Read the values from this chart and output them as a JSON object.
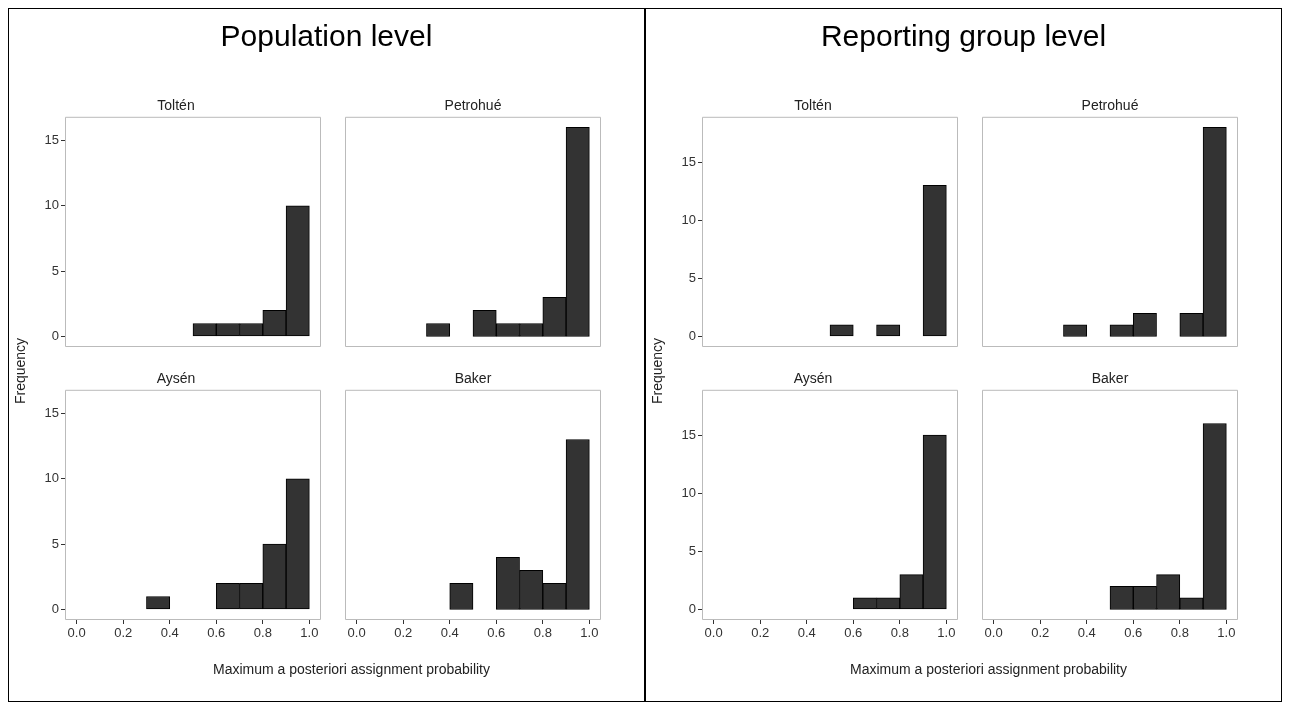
{
  "chart_data": [
    {
      "type": "other",
      "title": "Population level"
    },
    {
      "type": "histogram",
      "title": "Toltén",
      "ylabel": "Frequency",
      "bins": [
        0,
        0.1,
        0.2,
        0.3,
        0.4,
        0.5,
        0.6,
        0.7,
        0.8,
        0.9,
        1.0
      ],
      "values": [
        0,
        0,
        0,
        0,
        0,
        1,
        1,
        1,
        2,
        10
      ],
      "color": "#333333",
      "xlim": [
        -0.05,
        1.05
      ],
      "ylim": [
        -0.8,
        16.8
      ],
      "xticks": [
        0,
        0.2,
        0.4,
        0.6,
        0.8,
        1
      ],
      "yticks": [
        0,
        5,
        10,
        15
      ],
      "grid": false,
      "tick_labels": "y"
    },
    {
      "type": "histogram",
      "title": "Petrohué",
      "bins": [
        0,
        0.1,
        0.2,
        0.3,
        0.4,
        0.5,
        0.6,
        0.7,
        0.8,
        0.9,
        1.0
      ],
      "values": [
        0,
        0,
        0,
        1,
        0,
        2,
        1,
        1,
        3,
        16
      ],
      "color": "#333333",
      "xlim": [
        -0.05,
        1.05
      ],
      "ylim": [
        -0.8,
        16.8
      ],
      "xticks": [
        0,
        0.2,
        0.4,
        0.6,
        0.8,
        1
      ],
      "yticks": [
        0,
        5,
        10,
        15
      ],
      "grid": false,
      "tick_labels": false
    },
    {
      "type": "histogram",
      "title": "Aysén",
      "xlabel": "Maximum a posteriori assignment probability",
      "bins": [
        0,
        0.1,
        0.2,
        0.3,
        0.4,
        0.5,
        0.6,
        0.7,
        0.8,
        0.9,
        1.0
      ],
      "values": [
        0,
        0,
        0,
        1,
        0,
        0,
        2,
        2,
        5,
        10
      ],
      "color": "#333333",
      "xlim": [
        -0.05,
        1.05
      ],
      "ylim": [
        -0.8,
        16.8
      ],
      "xticks": [
        {
          "value": 0,
          "label": "0.0"
        },
        {
          "value": 0.2,
          "label": "0.2"
        },
        {
          "value": 0.4,
          "label": "0.4"
        },
        {
          "value": 0.6,
          "label": "0.6"
        },
        {
          "value": 0.8,
          "label": "0.8"
        },
        {
          "value": 1,
          "label": "1.0"
        }
      ],
      "yticks": [
        0,
        5,
        10,
        15
      ],
      "grid": false
    },
    {
      "type": "histogram",
      "title": "Baker",
      "bins": [
        0,
        0.1,
        0.2,
        0.3,
        0.4,
        0.5,
        0.6,
        0.7,
        0.8,
        0.9,
        1.0
      ],
      "values": [
        0,
        0,
        0,
        0,
        2,
        0,
        4,
        3,
        2,
        13
      ],
      "color": "#333333",
      "xlim": [
        -0.05,
        1.05
      ],
      "ylim": [
        -0.8,
        16.8
      ],
      "xticks": [
        {
          "value": 0,
          "label": "0.0"
        },
        {
          "value": 0.2,
          "label": "0.2"
        },
        {
          "value": 0.4,
          "label": "0.4"
        },
        {
          "value": 0.6,
          "label": "0.6"
        },
        {
          "value": 0.8,
          "label": "0.8"
        },
        {
          "value": 1,
          "label": "1.0"
        }
      ],
      "yticks": [
        0,
        5,
        10,
        15
      ],
      "grid": false,
      "tick_labels": "x"
    },
    {
      "type": "other",
      "title": "Reporting group level"
    },
    {
      "type": "histogram",
      "title": "Toltén",
      "ylabel": "Frequency",
      "bins": [
        0,
        0.1,
        0.2,
        0.3,
        0.4,
        0.5,
        0.6,
        0.7,
        0.8,
        0.9,
        1.0
      ],
      "values": [
        0,
        0,
        0,
        0,
        0,
        1,
        0,
        1,
        0,
        13
      ],
      "color": "#333333",
      "xlim": [
        -0.05,
        1.05
      ],
      "ylim": [
        -0.9,
        18.9
      ],
      "xticks": [
        0,
        0.2,
        0.4,
        0.6,
        0.8,
        1
      ],
      "yticks": [
        0,
        5,
        10,
        15
      ],
      "grid": false,
      "tick_labels": "y"
    },
    {
      "type": "histogram",
      "title": "Petrohué",
      "bins": [
        0,
        0.1,
        0.2,
        0.3,
        0.4,
        0.5,
        0.6,
        0.7,
        0.8,
        0.9,
        1.0
      ],
      "values": [
        0,
        0,
        0,
        1,
        0,
        1,
        2,
        0,
        2,
        18
      ],
      "color": "#333333",
      "xlim": [
        -0.05,
        1.05
      ],
      "ylim": [
        -0.9,
        18.9
      ],
      "xticks": [
        0,
        0.2,
        0.4,
        0.6,
        0.8,
        1
      ],
      "yticks": [
        0,
        5,
        10,
        15
      ],
      "grid": false,
      "tick_labels": false
    },
    {
      "type": "histogram",
      "title": "Aysén",
      "xlabel": "Maximum a posteriori assignment probability",
      "bins": [
        0,
        0.1,
        0.2,
        0.3,
        0.4,
        0.5,
        0.6,
        0.7,
        0.8,
        0.9,
        1.0
      ],
      "values": [
        0,
        0,
        0,
        0,
        0,
        0,
        1,
        1,
        3,
        15
      ],
      "color": "#333333",
      "xlim": [
        -0.05,
        1.05
      ],
      "ylim": [
        -0.9,
        18.9
      ],
      "xticks": [
        {
          "value": 0,
          "label": "0.0"
        },
        {
          "value": 0.2,
          "label": "0.2"
        },
        {
          "value": 0.4,
          "label": "0.4"
        },
        {
          "value": 0.6,
          "label": "0.6"
        },
        {
          "value": 0.8,
          "label": "0.8"
        },
        {
          "value": 1,
          "label": "1.0"
        }
      ],
      "yticks": [
        0,
        5,
        10,
        15
      ],
      "grid": false
    },
    {
      "type": "histogram",
      "title": "Baker",
      "bins": [
        0,
        0.1,
        0.2,
        0.3,
        0.4,
        0.5,
        0.6,
        0.7,
        0.8,
        0.9,
        1.0
      ],
      "values": [
        0,
        0,
        0,
        0,
        0,
        2,
        2,
        3,
        1,
        16
      ],
      "color": "#333333",
      "xlim": [
        -0.05,
        1.05
      ],
      "ylim": [
        -0.9,
        18.9
      ],
      "xticks": [
        {
          "value": 0,
          "label": "0.0"
        },
        {
          "value": 0.2,
          "label": "0.2"
        },
        {
          "value": 0.4,
          "label": "0.4"
        },
        {
          "value": 0.6,
          "label": "0.6"
        },
        {
          "value": 0.8,
          "label": "0.8"
        },
        {
          "value": 1,
          "label": "1.0"
        }
      ],
      "yticks": [
        0,
        5,
        10,
        15
      ],
      "grid": false,
      "tick_labels": "x"
    }
  ]
}
